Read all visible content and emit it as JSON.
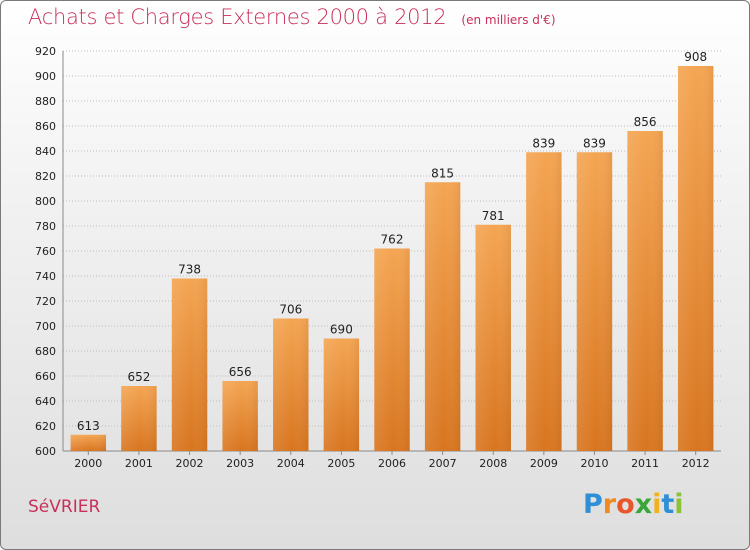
{
  "chart_data": {
    "type": "bar",
    "title": "Achats et Charges Externes 2000 à 2012",
    "subtitle": "(en milliers d'€)",
    "categories": [
      "2000",
      "2001",
      "2002",
      "2003",
      "2004",
      "2005",
      "2006",
      "2007",
      "2008",
      "2009",
      "2010",
      "2011",
      "2012"
    ],
    "values": [
      613,
      652,
      738,
      656,
      706,
      690,
      762,
      815,
      781,
      839,
      839,
      856,
      908
    ],
    "ylim": [
      600,
      920
    ],
    "yticks": [
      600,
      620,
      640,
      660,
      680,
      700,
      720,
      740,
      760,
      780,
      800,
      820,
      840,
      860,
      880,
      900,
      920
    ],
    "grid": true,
    "xlabel": "",
    "ylabel": "",
    "bar_color_top": "#f4a552",
    "bar_color_bottom": "#d8751f"
  },
  "footer": {
    "city": "SéVRIER",
    "brand_letters": [
      "P",
      "r",
      "o",
      "x",
      "i",
      "t",
      "i"
    ],
    "brand_colors": [
      "#2f8fd6",
      "#f08a1f",
      "#e8562a",
      "#3aa63a",
      "#f0b21f",
      "#2f8fd6",
      "#8bc23a"
    ]
  }
}
